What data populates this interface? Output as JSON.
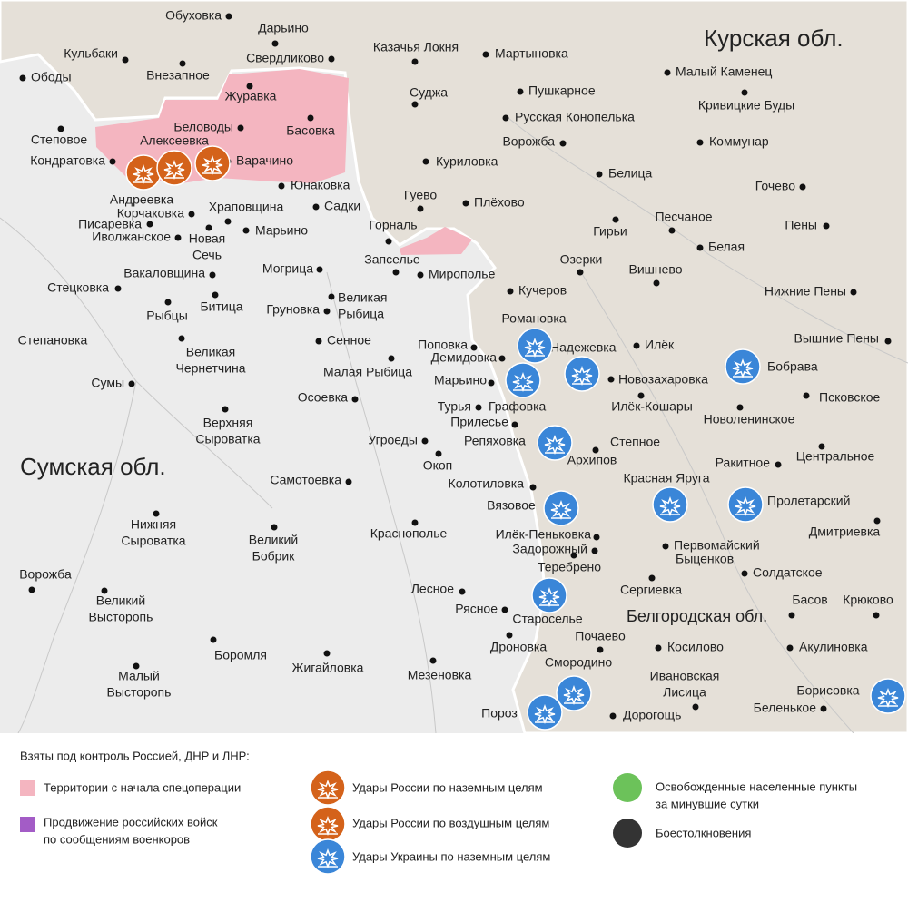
{
  "regions": [
    "Курская обл.",
    "Сумская обл.",
    "Белгородская обл."
  ],
  "towns": [
    "Обуховка",
    "Дарьино",
    "Свердликово",
    "Казачья Локня",
    "Мартыновка",
    "Кульбаки",
    "Ободы",
    "Внезапное",
    "Журавка",
    "Басовка",
    "Беловоды",
    "Алексеевка",
    "Варачино",
    "Степовое",
    "Кондратовка",
    "Суджа",
    "Пушкарное",
    "Малый Каменец",
    "Кривицкие Буды",
    "Русская Конопелька",
    "Ворожба",
    "Коммунар",
    "Куриловка",
    "Белица",
    "Гочево",
    "Юнаковка",
    "Андреевка",
    "Корчаковка",
    "Храповщина",
    "Садки",
    "Гуево",
    "Плёхово",
    "Гирьи",
    "Песчаное",
    "Пены",
    "Писаревка",
    "Иволжанское",
    [
      "Новая",
      "Сечь"
    ],
    "Марьино",
    "Горналь",
    "Белая",
    "Запселье",
    "Озерки",
    "Вишнево",
    "Могрица",
    "Мирополье",
    "Вакаловщина",
    "Стецковка",
    "Кучеров",
    "Нижние Пены",
    "Рыбцы",
    "Битица",
    "Груновка",
    [
      "Великая",
      "Рыбица"
    ],
    "Романовка",
    "Надежевка",
    "Илёк",
    "Вышние Пены",
    "Степановка",
    "Сенное",
    [
      "Великая",
      "Чернетчина"
    ],
    "Поповка",
    "Демидовка",
    "Бобрава",
    "Малая Рыбица",
    "Новозахаровка",
    "Марьино",
    "Сумы",
    "Илёк-Кошары",
    "Псковское",
    "Осоевка",
    "Турья",
    "Графовка",
    "Новоленинское",
    "Прилесье",
    [
      "Верхняя",
      "Сыроватка"
    ],
    "Репяховка",
    "Степное",
    "Центральное",
    "Угроеды",
    "Архипов",
    "Ракитное",
    "Окоп",
    "Самотоевка",
    "Колотиловка",
    "Красная Яруга",
    "Пролетарский",
    "Вязовое",
    [
      "Нижняя",
      "Сыроватка"
    ],
    "Краснополье",
    [
      "Великий",
      "Бобрик"
    ],
    "Дмитриевка",
    "Илёк-Пеньковка",
    "Задорожный",
    "Первомайский",
    "Быценков",
    "Теребрено",
    "Солдатское",
    "Ворожба",
    "Сергиевка",
    "Лесное",
    [
      "Великий",
      "Высторопь"
    ],
    "Басов",
    "Крюково",
    "Рясное",
    "Староселье",
    "Почаево",
    "Дроновка",
    "Косилово",
    "Акулиновка",
    "Боромля",
    "Жигайловка",
    [
      "Малый",
      "Высторопь"
    ],
    "Смородино",
    "Мезеновка",
    [
      "Ивановская",
      "Лисица"
    ],
    "Борисовка",
    "Пороз",
    "Дорогощь",
    "Беленькое"
  ],
  "legend": {
    "title": "Взяты под контроль Россией, ДНР и ЛНР:",
    "items": [
      "Территории с начала спецоперации",
      [
        "Продвижение российских войск",
        "по сообщениям военкоров"
      ],
      "Удары России по наземным целям",
      "Удары России по воздушным целям",
      "Удары Украины по наземным целям",
      [
        "Освобожденные населенные пункты",
        "за минувшие сутки"
      ],
      "Боестолкновения"
    ]
  }
}
